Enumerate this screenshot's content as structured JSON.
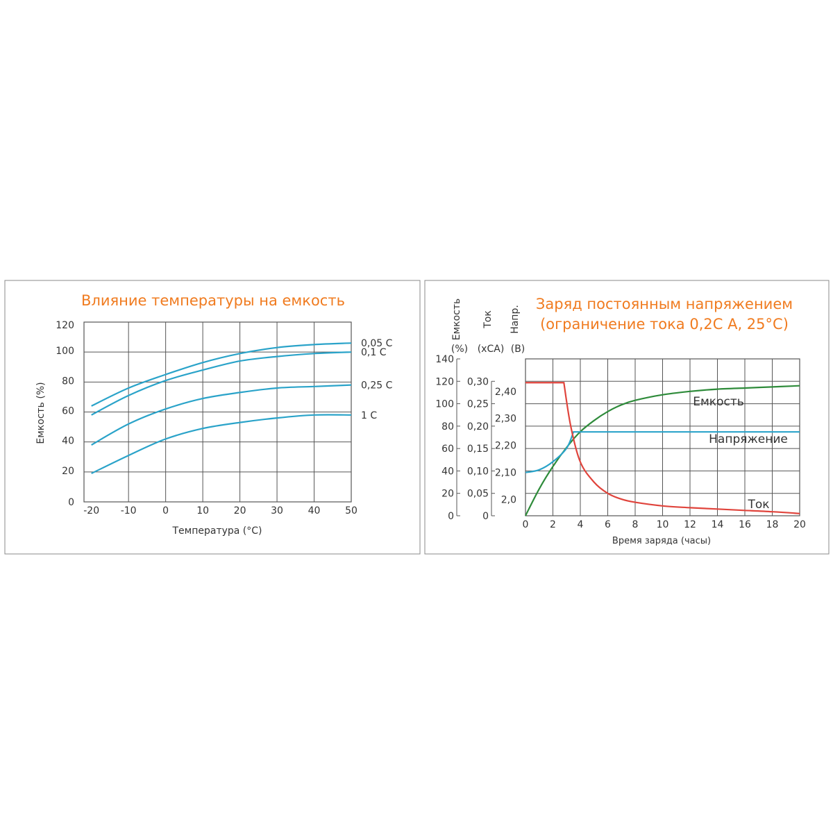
{
  "chart_data": [
    {
      "type": "line",
      "title": "Влияние температуры на емкость",
      "xlabel": "Температура (°С)",
      "ylabel": "Емкость (%)",
      "x_ticks": [
        "-20",
        "-10",
        "0",
        "10",
        "20",
        "30",
        "40",
        "50"
      ],
      "y_ticks": [
        "0",
        "20",
        "40",
        "60",
        "80",
        "100",
        "120"
      ],
      "xlim": [
        -22,
        50
      ],
      "ylim": [
        0,
        120
      ],
      "grid": true,
      "series": [
        {
          "name": "0,05 С",
          "x": [
            -20,
            -10,
            0,
            10,
            20,
            30,
            40,
            50
          ],
          "y": [
            64,
            76,
            85,
            93,
            99,
            103,
            105,
            106
          ]
        },
        {
          "name": "0,1 С",
          "x": [
            -20,
            -10,
            0,
            10,
            20,
            30,
            40,
            50
          ],
          "y": [
            58,
            71,
            81,
            88,
            94,
            97,
            99,
            100
          ]
        },
        {
          "name": "0,25 С",
          "x": [
            -20,
            -10,
            0,
            10,
            20,
            30,
            40,
            50
          ],
          "y": [
            38,
            52,
            62,
            69,
            73,
            76,
            77,
            78
          ]
        },
        {
          "name": "1 С",
          "x": [
            -20,
            -10,
            0,
            10,
            20,
            30,
            40,
            50
          ],
          "y": [
            19,
            31,
            42,
            49,
            53,
            56,
            58,
            58
          ]
        }
      ],
      "colors": {
        "line": "#2aa3c9",
        "grid": "#555555",
        "title": "#f07b1f"
      }
    },
    {
      "type": "line",
      "title": "Заряд постоянным напряжением",
      "subtitle": "(ограничение тока 0,2С А, 25°С)",
      "xlabel": "Время заряда (часы)",
      "x_ticks": [
        "0",
        "2",
        "4",
        "6",
        "8",
        "10",
        "12",
        "14",
        "16",
        "18",
        "20"
      ],
      "xlim": [
        0,
        20
      ],
      "grid": true,
      "axes": [
        {
          "name": "Емкость",
          "unit": "(%)",
          "ticks": [
            "0",
            "20",
            "40",
            "60",
            "80",
            "100",
            "120",
            "140"
          ],
          "range": [
            0,
            140
          ]
        },
        {
          "name": "Ток",
          "unit": "(хСА)",
          "ticks": [
            "0",
            "0,05",
            "0,10",
            "0,15",
            "0,20",
            "0,25",
            "0,30"
          ],
          "range": [
            0,
            0.35
          ]
        },
        {
          "name": "Напр.",
          "unit": "(В)",
          "ticks": [
            "2,0",
            "2,10",
            "2,20",
            "2,30",
            "2,40"
          ],
          "range": [
            1.94,
            2.52
          ]
        }
      ],
      "series": [
        {
          "name": "Емкость",
          "axis": 0,
          "x": [
            0,
            1,
            2,
            3,
            4,
            5,
            6,
            7,
            8,
            10,
            12,
            14,
            16,
            18,
            20
          ],
          "y": [
            0,
            24,
            44,
            61,
            75,
            85,
            93,
            99,
            103,
            108,
            111,
            113,
            114,
            115,
            116
          ],
          "color": "#2e8b3a"
        },
        {
          "name": "Напряжение",
          "axis": 2,
          "x": [
            0,
            1,
            2,
            3,
            3.5,
            4,
            6,
            8,
            10,
            12,
            14,
            16,
            18,
            20
          ],
          "y": [
            2.1,
            2.11,
            2.14,
            2.19,
            2.25,
            2.25,
            2.25,
            2.25,
            2.25,
            2.25,
            2.25,
            2.25,
            2.25,
            2.25
          ],
          "color": "#2aa3c9"
        },
        {
          "name": "Ток",
          "axis": 1,
          "x": [
            0,
            1,
            2,
            2.8,
            3.3,
            4,
            5,
            6,
            7,
            8,
            10,
            12,
            14,
            16,
            18,
            20
          ],
          "y": [
            0.297,
            0.297,
            0.297,
            0.297,
            0.2,
            0.12,
            0.075,
            0.05,
            0.037,
            0.03,
            0.022,
            0.018,
            0.015,
            0.012,
            0.009,
            0.005
          ],
          "color": "#e0443c"
        }
      ],
      "colors": {
        "grid": "#555555",
        "title": "#f07b1f"
      }
    }
  ]
}
